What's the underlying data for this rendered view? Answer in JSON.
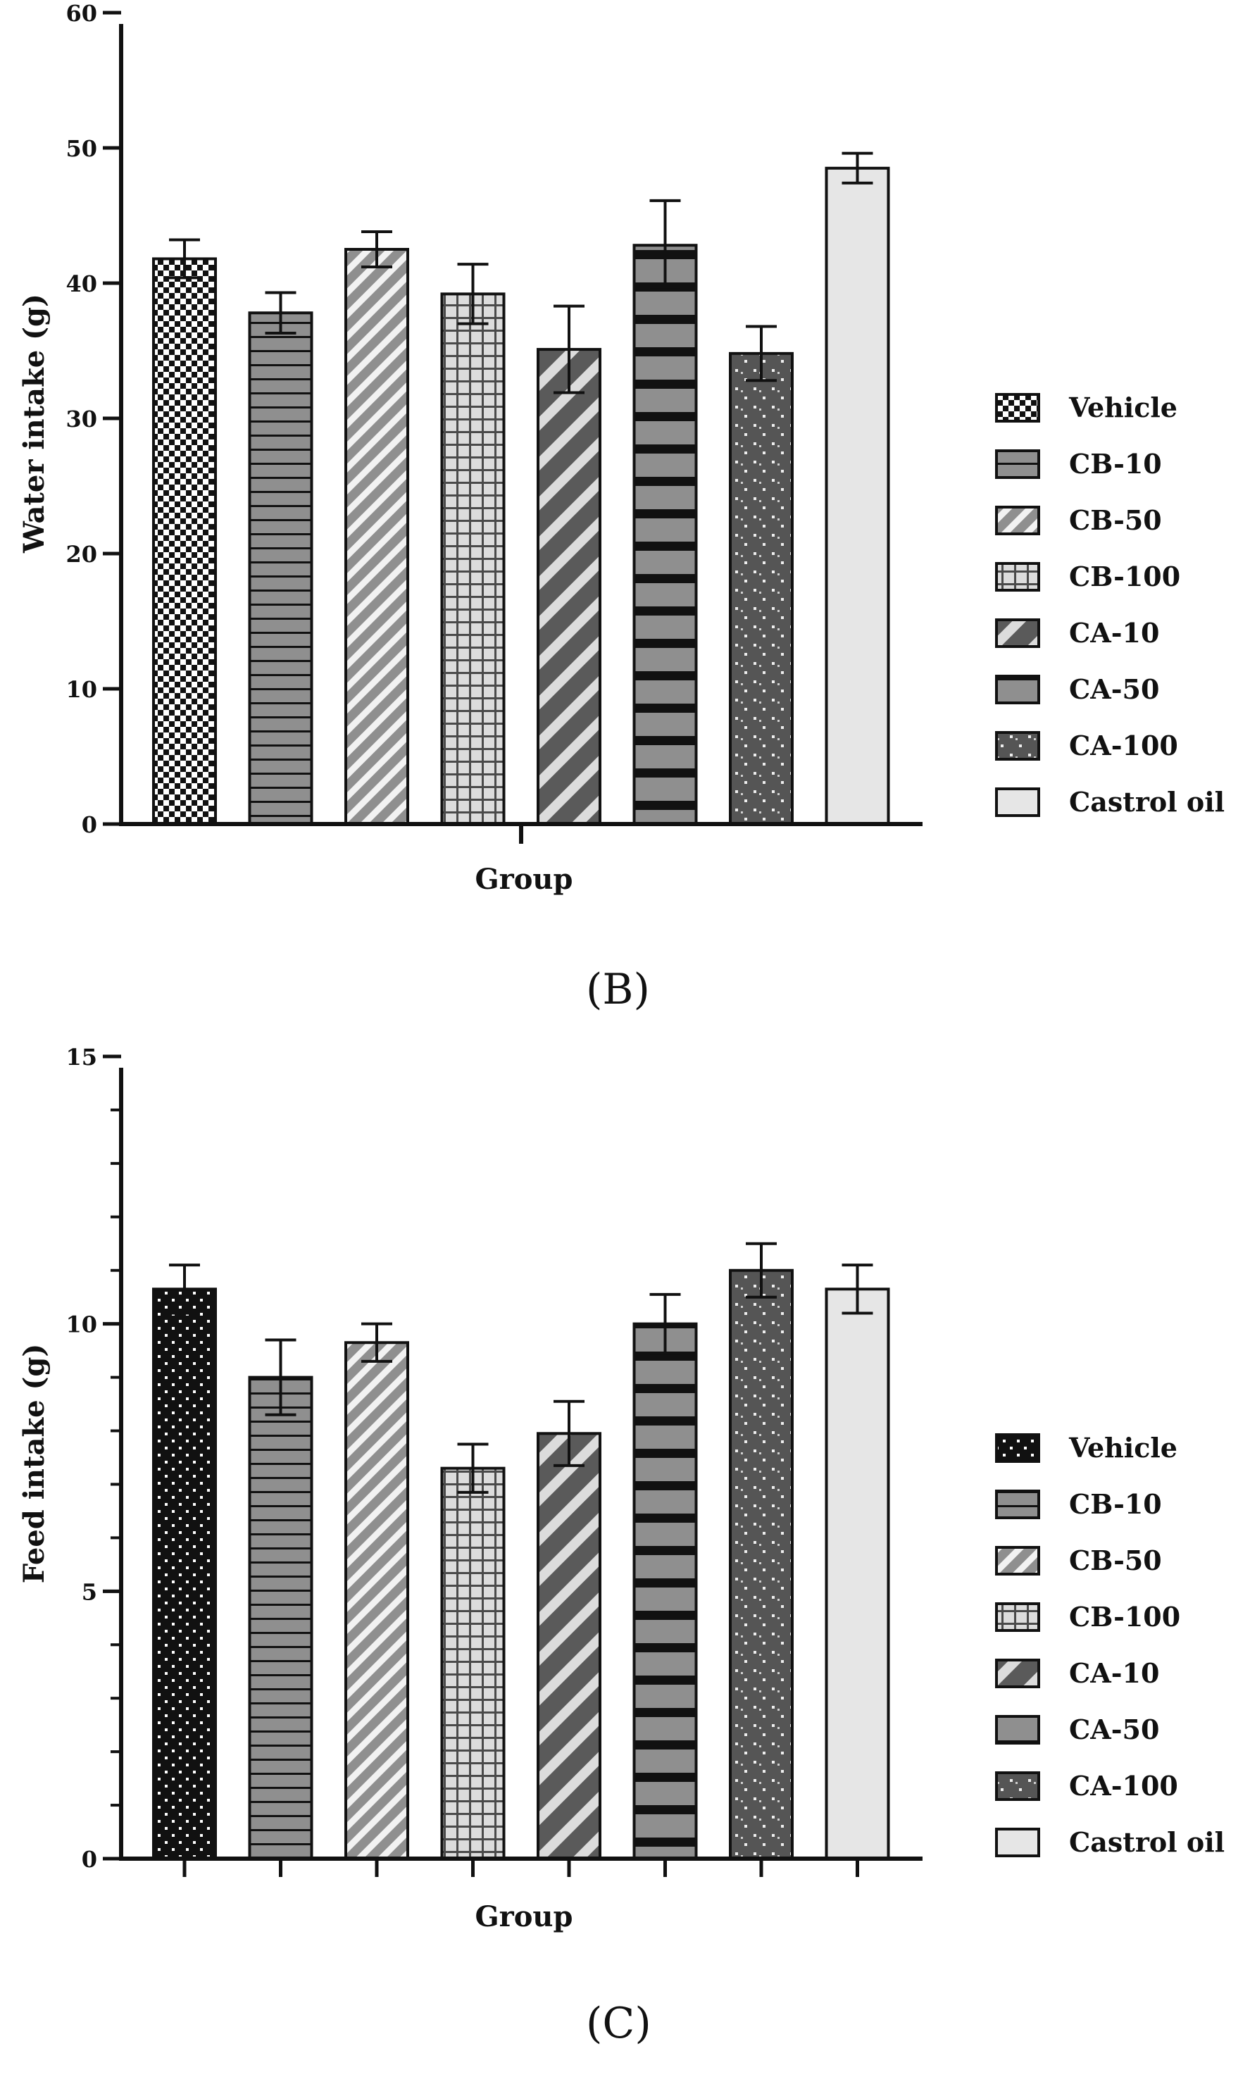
{
  "colors": {
    "ink": "#111111",
    "bar_mid_gray": "#8f8f8f",
    "bar_dark_gray": "#555555",
    "bar_light_gray": "#e6e6e6",
    "stripe_light": "#dcdcdc"
  },
  "legend_entries": [
    {
      "label": "Vehicle",
      "pattern": "checker"
    },
    {
      "label": "CB-10",
      "pattern": "hlines"
    },
    {
      "label": "CB-50",
      "pattern": "diag-light"
    },
    {
      "label": "CB-100",
      "pattern": "grid"
    },
    {
      "label": "CA-10",
      "pattern": "diag-dark"
    },
    {
      "label": "CA-50",
      "pattern": "hbands"
    },
    {
      "label": "CA-100",
      "pattern": "dots-dark"
    },
    {
      "label": "Castrol oil",
      "pattern": "solid-light"
    }
  ],
  "chart_data": [
    {
      "panel_label": "(B)",
      "type": "bar",
      "xlabel": "Group",
      "ylabel": "Water intake (g)",
      "ylim": [
        0,
        60
      ],
      "yticks": [
        0,
        10,
        20,
        30,
        40,
        50,
        60
      ],
      "minor_ticks": false,
      "x_tick_marks": "center",
      "legend_placement": "right",
      "categories": [
        "Vehicle",
        "CB-10",
        "CB-50",
        "CB-100",
        "CA-10",
        "CA-50",
        "CA-100",
        "Castrol oil"
      ],
      "patterns": [
        "checker",
        "hlines",
        "diag-light",
        "grid",
        "diag-dark",
        "hbands",
        "dots-dark",
        "solid-light"
      ],
      "values": [
        41.8,
        37.8,
        42.5,
        39.2,
        35.1,
        42.8,
        34.8,
        48.5
      ],
      "errors": [
        1.4,
        1.5,
        1.3,
        2.2,
        3.2,
        3.3,
        2.0,
        1.1
      ]
    },
    {
      "panel_label": "(C)",
      "type": "bar",
      "xlabel": "Group",
      "ylabel": "Feed intake (g)",
      "ylim": [
        0,
        15
      ],
      "yticks": [
        0,
        5,
        10,
        15
      ],
      "minor_ticks": true,
      "x_tick_marks": "per-bar",
      "legend_placement": "right",
      "categories": [
        "Vehicle",
        "CB-10",
        "CB-50",
        "CB-100",
        "CA-10",
        "CA-50",
        "CA-100",
        "Castrol oil"
      ],
      "patterns": [
        "dots-black",
        "hlines",
        "diag-light",
        "grid",
        "diag-dark",
        "hbands",
        "dots-dark",
        "solid-light"
      ],
      "values": [
        10.65,
        9.0,
        9.65,
        7.3,
        7.95,
        10.0,
        11.0,
        10.65
      ],
      "errors": [
        0.45,
        0.7,
        0.35,
        0.45,
        0.6,
        0.55,
        0.5,
        0.45
      ]
    }
  ]
}
